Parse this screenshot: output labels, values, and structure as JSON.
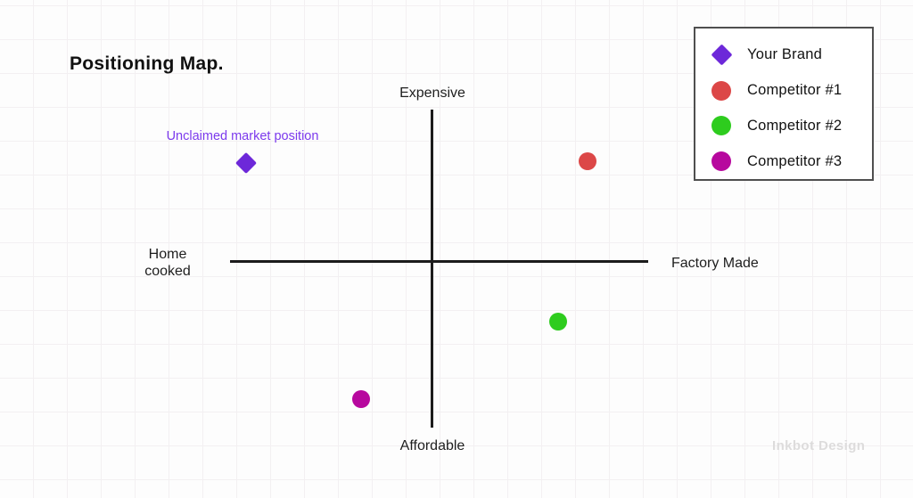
{
  "chart_data": {
    "type": "scatter",
    "title": "Positioning Map.",
    "axes": {
      "top": "Expensive",
      "bottom": "Affordable",
      "left": "Home cooked",
      "right": "Factory Made"
    },
    "xlim": [
      -1,
      1
    ],
    "ylim": [
      -1,
      1
    ],
    "grid": false,
    "legend_position": "top-right",
    "annotation": {
      "text": "Unclaimed market position",
      "target": "Your Brand",
      "color": "#7c3aed"
    },
    "points": [
      {
        "name": "Your Brand",
        "shape": "diamond",
        "color": "#6d28d9",
        "x": -0.89,
        "y": 0.61
      },
      {
        "name": "Competitor #1",
        "shape": "circle",
        "color": "#dc4747",
        "x": 0.74,
        "y": 0.62
      },
      {
        "name": "Competitor #2",
        "shape": "circle",
        "color": "#2ecc1e",
        "x": 0.6,
        "y": -0.38
      },
      {
        "name": "Competitor #3",
        "shape": "circle",
        "color": "#b7089e",
        "x": -0.34,
        "y": -0.86
      }
    ]
  },
  "legend": {
    "items": [
      {
        "label": "Your Brand",
        "shape": "diamond",
        "color": "#6d28d9"
      },
      {
        "label": "Competitor #1",
        "shape": "circle",
        "color": "#dc4747"
      },
      {
        "label": "Competitor #2",
        "shape": "circle",
        "color": "#2ecc1e"
      },
      {
        "label": "Competitor #3",
        "shape": "circle",
        "color": "#b7089e"
      }
    ]
  },
  "watermark": {
    "text": "Inkbot Design"
  }
}
